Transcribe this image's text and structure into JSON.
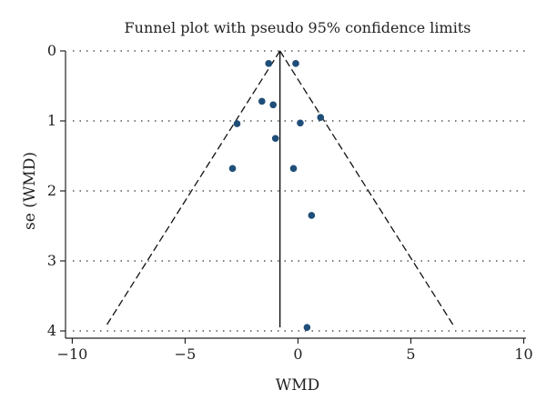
{
  "chart_data": {
    "type": "scatter",
    "title": "Funnel plot with pseudo 95% confidence limits",
    "xlabel": "WMD",
    "ylabel": "se (WMD)",
    "xlim": [
      -10.3,
      10.1
    ],
    "ylim": [
      0,
      4.05
    ],
    "y_inverted": true,
    "xticks": [
      -10,
      -5,
      0,
      5,
      10
    ],
    "yticks": [
      0,
      1,
      2,
      3,
      4
    ],
    "grid": "horizontal-dotted",
    "pooled_estimate": -0.8,
    "ci_se_max": 3.95,
    "points": [
      {
        "x": -1.3,
        "y": 0.18
      },
      {
        "x": -0.1,
        "y": 0.18
      },
      {
        "x": -1.6,
        "y": 0.72
      },
      {
        "x": -1.1,
        "y": 0.77
      },
      {
        "x": 1.0,
        "y": 0.95
      },
      {
        "x": -2.7,
        "y": 1.04
      },
      {
        "x": 0.1,
        "y": 1.03
      },
      {
        "x": -1.0,
        "y": 1.25
      },
      {
        "x": -2.9,
        "y": 1.68
      },
      {
        "x": -0.2,
        "y": 1.68
      },
      {
        "x": 0.6,
        "y": 2.35
      },
      {
        "x": 0.4,
        "y": 3.95
      }
    ]
  }
}
